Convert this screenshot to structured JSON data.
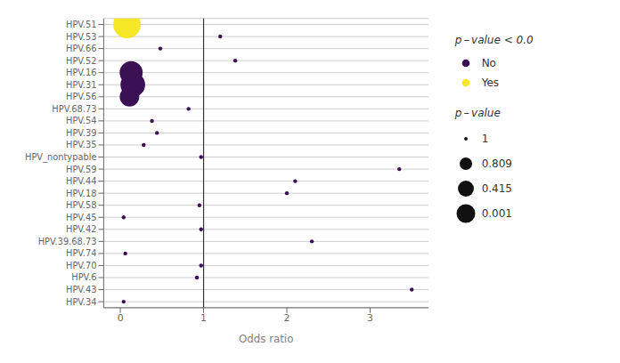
{
  "chart_data": {
    "type": "scatter",
    "categories": [
      "HPV.51",
      "HPV.53",
      "HPV.66",
      "HPV.52",
      "HPV.16",
      "HPV.31",
      "HPV.56",
      "HPV.68.73",
      "HPV.54",
      "HPV.39",
      "HPV.35",
      "HPV_nontypable",
      "HPV.59",
      "HPV.44",
      "HPV.18",
      "HPV.58",
      "HPV.45",
      "HPV.42",
      "HPV.39.68.73",
      "HPV.74",
      "HPV.70",
      "HPV.6",
      "HPV.43",
      "HPV.34"
    ],
    "series": [
      {
        "name": "No",
        "color": "#3b1054",
        "values": [
          null,
          1.2,
          0.48,
          1.38,
          0.13,
          0.15,
          0.11,
          0.82,
          0.38,
          0.44,
          0.28,
          0.97,
          3.35,
          2.1,
          2.0,
          0.95,
          0.04,
          0.97,
          2.3,
          0.06,
          0.97,
          0.92,
          3.5,
          0.04
        ],
        "sizes": [
          null,
          8,
          8,
          8,
          280,
          320,
          200,
          8,
          8,
          8,
          8,
          8,
          8,
          8,
          8,
          8,
          8,
          8,
          8,
          8,
          8,
          8,
          8,
          8
        ]
      },
      {
        "name": "Yes",
        "color": "#f5e626",
        "values": [
          0.08,
          null,
          null,
          null,
          null,
          null,
          null,
          null,
          null,
          null,
          null,
          null,
          null,
          null,
          null,
          null,
          null,
          null,
          null,
          null,
          null,
          null,
          null,
          null
        ],
        "sizes": [
          400,
          null,
          null,
          null,
          null,
          null,
          null,
          null,
          null,
          null,
          null,
          null,
          null,
          null,
          null,
          null,
          null,
          null,
          null,
          null,
          null,
          null,
          null,
          null
        ]
      }
    ],
    "xlabel": "Odds ratio",
    "xlim": [
      -0.2,
      3.7
    ],
    "xticks": [
      0,
      1,
      2,
      3
    ],
    "vline": 1.0,
    "grid": true,
    "legend_title": "p – value < 0.0",
    "size_legend": {
      "title": "p – value",
      "values": [
        1,
        0.809,
        0.415,
        0.001
      ],
      "sizes": [
        6,
        80,
        130,
        180
      ]
    }
  }
}
